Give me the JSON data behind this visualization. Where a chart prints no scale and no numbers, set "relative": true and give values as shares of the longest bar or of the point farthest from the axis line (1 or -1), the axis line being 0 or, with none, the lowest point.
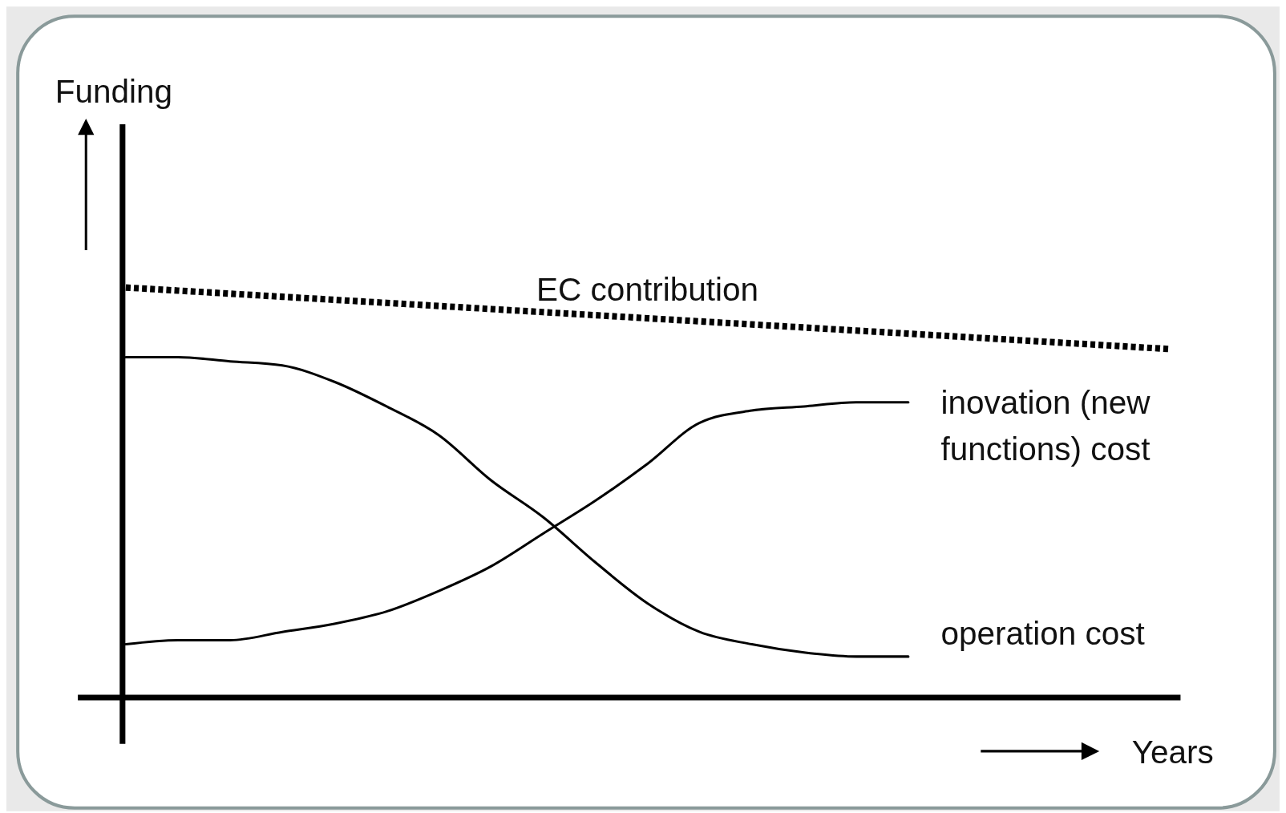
{
  "chart_data": {
    "type": "line",
    "relative": true,
    "xlabel": "Years",
    "annotations": [
      "Funding"
    ],
    "marker": "none",
    "categories": [
      null,
      null,
      null,
      null,
      null,
      null,
      null,
      null,
      null,
      null,
      null,
      null,
      null,
      null,
      null,
      null,
      null,
      null,
      null,
      null,
      null
    ],
    "series": [
      {
        "name": "EC contribution",
        "color": "#000000",
        "line_style": "dotted",
        "values": [
          1,
          0.9925,
          0.985,
          0.9775,
          0.97,
          0.9625,
          0.955,
          0.9475,
          0.94,
          0.9325,
          0.925,
          0.9175,
          0.91,
          0.9025,
          0.895,
          0.8875,
          0.88,
          0.8725,
          0.865,
          0.8575,
          0.85
        ]
      },
      {
        "name": "inovation (new functions) cost",
        "color": "#000000",
        "line_style": "solid",
        "values": [
          0.13,
          0.14,
          0.14,
          0.16,
          0.18,
          0.21,
          0.26,
          0.32,
          0.4,
          0.48,
          0.57,
          0.67,
          0.7,
          0.71,
          0.72,
          0.72,
          null,
          null,
          null,
          null,
          null
        ]
      },
      {
        "name": "operation cost",
        "color": "#000000",
        "line_style": "solid",
        "values": [
          0.83,
          0.83,
          0.82,
          0.81,
          0.77,
          0.71,
          0.64,
          0.53,
          0.44,
          0.33,
          0.23,
          0.16,
          0.13,
          0.11,
          0.1,
          0.1,
          null,
          null,
          null,
          null,
          null
        ]
      }
    ]
  }
}
